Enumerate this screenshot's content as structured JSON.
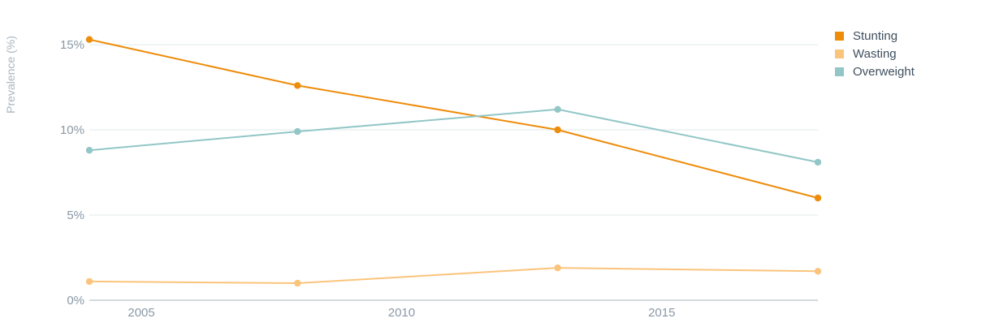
{
  "chart_data": {
    "type": "line",
    "title": "",
    "xlabel": "",
    "ylabel": "Prevalence (%)",
    "xlim": [
      2004,
      2018
    ],
    "ylim": [
      0,
      15.5
    ],
    "x_ticks": [
      2005,
      2010,
      2015
    ],
    "y_ticks": [
      0,
      5,
      10,
      15
    ],
    "y_tick_labels": [
      "0%",
      "5%",
      "10%",
      "15%"
    ],
    "grid": true,
    "legend_position": "top-right",
    "series": [
      {
        "name": "Stunting",
        "color": "#ee8c0b",
        "points": [
          [
            2004,
            15.3
          ],
          [
            2008,
            12.6
          ],
          [
            2013,
            10.0
          ],
          [
            2018,
            6.0
          ]
        ]
      },
      {
        "name": "Wasting",
        "color": "#fbc47c",
        "points": [
          [
            2004,
            1.1
          ],
          [
            2008,
            1.0
          ],
          [
            2013,
            1.9
          ],
          [
            2018,
            1.7
          ]
        ]
      },
      {
        "name": "Overweight",
        "color": "#92c6c7",
        "points": [
          [
            2004,
            8.8
          ],
          [
            2008,
            9.9
          ],
          [
            2013,
            11.2
          ],
          [
            2018,
            8.1
          ]
        ]
      }
    ]
  }
}
